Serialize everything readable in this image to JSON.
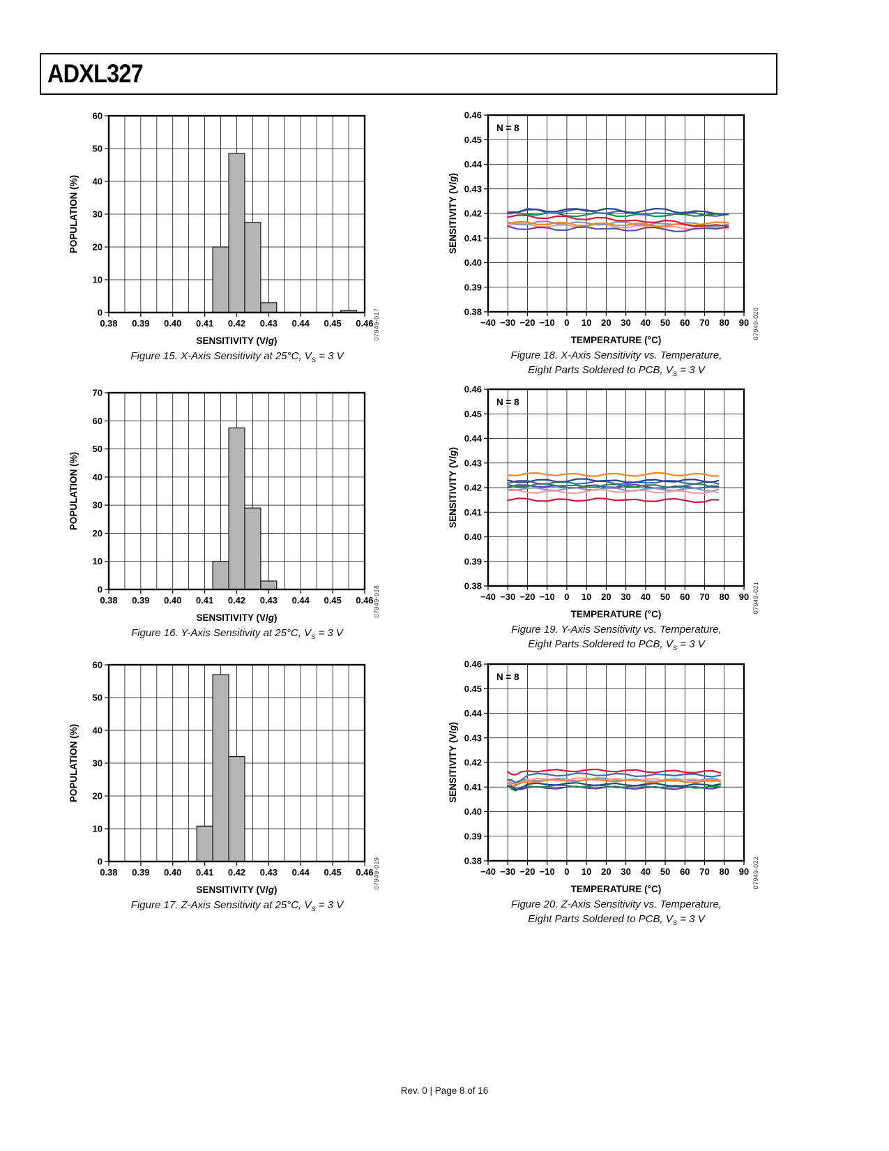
{
  "page": {
    "title": "ADXL327",
    "footer": "Rev. 0 | Page 8 of 16"
  },
  "chart_data": [
    {
      "kind": "histogram",
      "code": "07949-017",
      "caption": {
        "text": "Figure 15. X-Axis Sensitivity at 25°C, V",
        "sub": "S",
        "tail": " = 3 V"
      },
      "y_axis": {
        "title": "POPULATION (%)",
        "min": 0,
        "max": 60,
        "step": 10,
        "labels": [
          "0",
          "10",
          "20",
          "30",
          "40",
          "50",
          "60"
        ]
      },
      "x_axis": {
        "title_pre": "SENSITIVITY (V/",
        "title_italic": "g",
        "title_post": ")",
        "min": 0.38,
        "max": 0.46,
        "major_step": 0.01,
        "minor_step": 0.005,
        "labels": [
          "0.38",
          "0.39",
          "0.40",
          "0.41",
          "0.42",
          "0.43",
          "0.44",
          "0.45",
          "0.46"
        ]
      },
      "bar_color": "#b5b5b5",
      "bars": [
        {
          "center": 0.415,
          "width": 0.005,
          "value": 20
        },
        {
          "center": 0.42,
          "width": 0.005,
          "value": 48.5
        },
        {
          "center": 0.425,
          "width": 0.005,
          "value": 27.5
        },
        {
          "center": 0.43,
          "width": 0.005,
          "value": 3
        },
        {
          "center": 0.455,
          "width": 0.005,
          "value": 0.6
        }
      ]
    },
    {
      "kind": "histogram",
      "code": "07949-018",
      "caption": {
        "text": "Figure 16. Y-Axis Sensitivity at 25°C, V",
        "sub": "S",
        "tail": " = 3 V"
      },
      "y_axis": {
        "title": "POPULATION (%)",
        "min": 0,
        "max": 70,
        "step": 10,
        "labels": [
          "0",
          "10",
          "20",
          "30",
          "40",
          "50",
          "60",
          "70"
        ]
      },
      "x_axis": {
        "title_pre": "SENSITIVITY (V/",
        "title_italic": "g",
        "title_post": ")",
        "min": 0.38,
        "max": 0.46,
        "major_step": 0.01,
        "minor_step": 0.005,
        "labels": [
          "0.38",
          "0.39",
          "0.40",
          "0.41",
          "0.42",
          "0.43",
          "0.44",
          "0.45",
          "0.46"
        ]
      },
      "bar_color": "#b5b5b5",
      "bars": [
        {
          "center": 0.415,
          "width": 0.005,
          "value": 10
        },
        {
          "center": 0.42,
          "width": 0.005,
          "value": 57.5
        },
        {
          "center": 0.425,
          "width": 0.005,
          "value": 29
        },
        {
          "center": 0.43,
          "width": 0.005,
          "value": 3
        }
      ]
    },
    {
      "kind": "histogram",
      "code": "07949-019",
      "caption": {
        "text": "Figure 17. Z-Axis Sensitivity at 25°C, V",
        "sub": "S",
        "tail": " = 3 V"
      },
      "y_axis": {
        "title": "POPULATION (%)",
        "min": 0,
        "max": 60,
        "step": 10,
        "labels": [
          "0",
          "10",
          "20",
          "30",
          "40",
          "50",
          "60"
        ]
      },
      "x_axis": {
        "title_pre": "SENSITIVITY (V/",
        "title_italic": "g",
        "title_post": ")",
        "min": 0.38,
        "max": 0.46,
        "major_step": 0.01,
        "minor_step": 0.005,
        "labels": [
          "0.38",
          "0.39",
          "0.40",
          "0.41",
          "0.42",
          "0.43",
          "0.44",
          "0.45",
          "0.46"
        ]
      },
      "bar_color": "#b5b5b5",
      "bars": [
        {
          "center": 0.41,
          "width": 0.005,
          "value": 10.8
        },
        {
          "center": 0.415,
          "width": 0.005,
          "value": 57
        },
        {
          "center": 0.42,
          "width": 0.005,
          "value": 32
        }
      ]
    },
    {
      "kind": "line",
      "code": "07949-020",
      "annotation": "N = 8",
      "caption": {
        "line1": "Figure 18. X-Axis Sensitivity vs. Temperature,",
        "line2": "Eight Parts Soldered to PCB, V",
        "sub": "S",
        "tail": " = 3 V"
      },
      "y_axis": {
        "title_pre": "SENSITIVITY (V/",
        "title_italic": "g",
        "title_post": ")",
        "min": 0.38,
        "max": 0.46,
        "step": 0.01,
        "labels": [
          "0.38",
          "0.39",
          "0.40",
          "0.41",
          "0.42",
          "0.43",
          "0.44",
          "0.45",
          "0.46"
        ]
      },
      "x_axis": {
        "title": "TEMPERATURE (°C)",
        "min": -40,
        "max": 90,
        "major_step": 10,
        "labels": [
          "−40",
          "−30",
          "−20",
          "−10",
          "0",
          "10",
          "20",
          "30",
          "40",
          "50",
          "60",
          "70",
          "80",
          "90"
        ]
      },
      "x": [
        -30,
        -20,
        -10,
        0,
        10,
        20,
        30,
        40,
        50,
        60,
        70,
        82
      ],
      "series": [
        {
          "name": "part-1",
          "color": "#f09aa6",
          "values": [
            0.415,
            0.4158,
            0.4145,
            0.4152,
            0.4148,
            0.4155,
            0.4142,
            0.415,
            0.4145,
            0.4138,
            0.4142,
            0.4138
          ]
        },
        {
          "name": "part-2",
          "color": "#8296c4",
          "values": [
            0.4165,
            0.4155,
            0.4168,
            0.4158,
            0.4162,
            0.4155,
            0.4165,
            0.4152,
            0.4158,
            0.4162,
            0.415,
            0.4155
          ]
        },
        {
          "name": "part-3",
          "color": "#f6861f",
          "values": [
            0.4158,
            0.4165,
            0.4155,
            0.4162,
            0.415,
            0.416,
            0.4152,
            0.4158,
            0.4148,
            0.4155,
            0.4158,
            0.4162
          ]
        },
        {
          "name": "part-4",
          "color": "#6847a4",
          "values": [
            0.4148,
            0.4135,
            0.4142,
            0.4132,
            0.4145,
            0.4138,
            0.413,
            0.4142,
            0.4135,
            0.4128,
            0.414,
            0.4145
          ]
        },
        {
          "name": "part-5",
          "color": "#1f8f4e",
          "values": [
            0.42,
            0.4196,
            0.4202,
            0.419,
            0.4195,
            0.42,
            0.4188,
            0.4195,
            0.419,
            0.4196,
            0.4192,
            0.4196
          ]
        },
        {
          "name": "part-6",
          "color": "#4668ab",
          "values": [
            0.4198,
            0.422,
            0.4202,
            0.421,
            0.4215,
            0.42,
            0.4208,
            0.4195,
            0.42,
            0.4205,
            0.4192,
            0.4196
          ]
        },
        {
          "name": "part-7",
          "color": "#d4163c",
          "values": [
            0.4185,
            0.4192,
            0.418,
            0.4188,
            0.4175,
            0.4182,
            0.417,
            0.4165,
            0.4172,
            0.4155,
            0.415,
            0.4148
          ]
        },
        {
          "name": "part-8",
          "color": "#2a4590",
          "values": [
            0.4205,
            0.4215,
            0.4208,
            0.4218,
            0.421,
            0.422,
            0.4205,
            0.4212,
            0.4218,
            0.4202,
            0.4208,
            0.4198
          ]
        }
      ]
    },
    {
      "kind": "line",
      "code": "07949-021",
      "annotation": "N = 8",
      "caption": {
        "line1": "Figure 19. Y-Axis Sensitivity vs. Temperature,",
        "line2": "Eight Parts Soldered to PCB, V",
        "sub": "S",
        "tail": " = 3 V"
      },
      "y_axis": {
        "title_pre": "SENSITIVITY (V/",
        "title_italic": "g",
        "title_post": ")",
        "min": 0.38,
        "max": 0.46,
        "step": 0.01,
        "labels": [
          "0.38",
          "0.39",
          "0.40",
          "0.41",
          "0.42",
          "0.43",
          "0.44",
          "0.45",
          "0.46"
        ]
      },
      "x_axis": {
        "title": "TEMPERATURE (°C)",
        "min": -40,
        "max": 90,
        "major_step": 10,
        "labels": [
          "−40",
          "−30",
          "−20",
          "−10",
          "0",
          "10",
          "20",
          "30",
          "40",
          "50",
          "60",
          "70",
          "80",
          "90"
        ]
      },
      "x": [
        -30,
        -20,
        -10,
        0,
        10,
        20,
        30,
        40,
        50,
        60,
        70,
        77
      ],
      "series": [
        {
          "name": "part-1",
          "color": "#6847a4",
          "values": [
            0.4202,
            0.421,
            0.4205,
            0.42,
            0.4208,
            0.4202,
            0.421,
            0.4205,
            0.4198,
            0.4205,
            0.42,
            0.4205
          ]
        },
        {
          "name": "part-2",
          "color": "#8296c4",
          "values": [
            0.4192,
            0.4198,
            0.419,
            0.4196,
            0.4192,
            0.4198,
            0.4188,
            0.4195,
            0.419,
            0.4196,
            0.4188,
            0.4192
          ]
        },
        {
          "name": "part-3",
          "color": "#f09aa6",
          "values": [
            0.4188,
            0.418,
            0.4186,
            0.4178,
            0.4185,
            0.419,
            0.4182,
            0.4188,
            0.418,
            0.4185,
            0.4178,
            0.418
          ]
        },
        {
          "name": "part-4",
          "color": "#1f8f4e",
          "values": [
            0.4212,
            0.4205,
            0.4215,
            0.4208,
            0.4202,
            0.4212,
            0.4205,
            0.421,
            0.4202,
            0.4208,
            0.4212,
            0.42
          ]
        },
        {
          "name": "part-5",
          "color": "#4668ab",
          "values": [
            0.4218,
            0.4228,
            0.4215,
            0.4222,
            0.4218,
            0.4225,
            0.4215,
            0.422,
            0.4228,
            0.4218,
            0.4222,
            0.4215
          ]
        },
        {
          "name": "part-6",
          "color": "#2a4590",
          "values": [
            0.423,
            0.4222,
            0.4232,
            0.4225,
            0.4235,
            0.4228,
            0.4222,
            0.423,
            0.4225,
            0.4232,
            0.4225,
            0.4228
          ]
        },
        {
          "name": "part-7",
          "color": "#d4163c",
          "values": [
            0.4148,
            0.4155,
            0.4145,
            0.4152,
            0.4148,
            0.4155,
            0.415,
            0.4145,
            0.4152,
            0.4148,
            0.4142,
            0.415
          ]
        },
        {
          "name": "part-8",
          "color": "#f6861f",
          "values": [
            0.425,
            0.4258,
            0.4252,
            0.4256,
            0.4248,
            0.4255,
            0.425,
            0.4253,
            0.4258,
            0.425,
            0.4255,
            0.4248
          ]
        }
      ]
    },
    {
      "kind": "line",
      "code": "07949-022",
      "annotation": "N = 8",
      "caption": {
        "line1": "Figure 20. Z-Axis Sensitivity vs. Temperature,",
        "line2": "Eight Parts Soldered to PCB, V",
        "sub": "S",
        "tail": " = 3 V"
      },
      "y_axis": {
        "title_pre": "SENSITIVITY (V/",
        "title_italic": "g",
        "title_post": ")",
        "min": 0.38,
        "max": 0.46,
        "step": 0.01,
        "labels": [
          "0.38",
          "0.39",
          "0.40",
          "0.41",
          "0.42",
          "0.43",
          "0.44",
          "0.45",
          "0.46"
        ]
      },
      "x_axis": {
        "title": "TEMPERATURE (°C)",
        "min": -40,
        "max": 90,
        "major_step": 10,
        "labels": [
          "−40",
          "−30",
          "−20",
          "−10",
          "0",
          "10",
          "20",
          "30",
          "40",
          "50",
          "60",
          "70",
          "80",
          "90"
        ]
      },
      "x": [
        -30,
        -26,
        -20,
        -10,
        0,
        10,
        20,
        30,
        40,
        50,
        60,
        70,
        78
      ],
      "series": [
        {
          "name": "part-1",
          "color": "#6847a4",
          "values": [
            0.4102,
            0.4092,
            0.4098,
            0.4095,
            0.41,
            0.4096,
            0.41,
            0.4095,
            0.4098,
            0.4094,
            0.4098,
            0.4095,
            0.41
          ]
        },
        {
          "name": "part-2",
          "color": "#1f8f4e",
          "values": [
            0.4108,
            0.4085,
            0.4105,
            0.4102,
            0.4106,
            0.4102,
            0.4105,
            0.41,
            0.4104,
            0.41,
            0.4103,
            0.4098,
            0.4102
          ]
        },
        {
          "name": "part-3",
          "color": "#2a4590",
          "values": [
            0.4105,
            0.4088,
            0.4112,
            0.411,
            0.4115,
            0.411,
            0.4112,
            0.4108,
            0.4112,
            0.4108,
            0.4105,
            0.411,
            0.4112
          ]
        },
        {
          "name": "part-4",
          "color": "#8296c4",
          "values": [
            0.4128,
            0.4112,
            0.4132,
            0.4128,
            0.4132,
            0.4128,
            0.4135,
            0.413,
            0.4125,
            0.413,
            0.4128,
            0.4132,
            0.4128
          ]
        },
        {
          "name": "part-5",
          "color": "#f09aa6",
          "values": [
            0.4125,
            0.4115,
            0.4128,
            0.4132,
            0.4128,
            0.4135,
            0.413,
            0.4128,
            0.4132,
            0.4126,
            0.413,
            0.4125,
            0.4128
          ]
        },
        {
          "name": "part-6",
          "color": "#f6861f",
          "values": [
            0.4118,
            0.4105,
            0.4122,
            0.4128,
            0.4125,
            0.413,
            0.4125,
            0.4128,
            0.4122,
            0.4126,
            0.412,
            0.4125,
            0.4122
          ]
        },
        {
          "name": "part-7",
          "color": "#4668ab",
          "values": [
            0.413,
            0.4118,
            0.4148,
            0.4152,
            0.4148,
            0.4155,
            0.4148,
            0.4152,
            0.4145,
            0.415,
            0.4152,
            0.4145,
            0.4148
          ]
        },
        {
          "name": "part-8",
          "color": "#d4163c",
          "values": [
            0.4162,
            0.415,
            0.4165,
            0.4168,
            0.4165,
            0.417,
            0.4165,
            0.4168,
            0.4162,
            0.4165,
            0.416,
            0.4165,
            0.4158
          ]
        }
      ]
    }
  ]
}
